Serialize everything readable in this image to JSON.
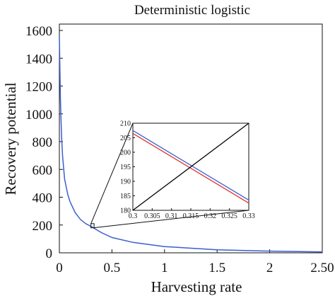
{
  "chart_data": [
    {
      "type": "line",
      "title": "Deterministic logistic",
      "xlabel": "Harvesting rate",
      "ylabel": "Recovery potential",
      "xlim": [
        0,
        2.5
      ],
      "ylim": [
        0,
        1600
      ],
      "xticks": [
        0,
        0.5,
        1,
        1.5,
        2,
        2.5
      ],
      "xtick_labels": [
        "0",
        "0.5",
        "1",
        "1.5",
        "2",
        "2.50"
      ],
      "yticks": [
        0,
        200,
        400,
        600,
        800,
        1000,
        1200,
        1400,
        1600
      ],
      "ytick_labels": [
        "0",
        "200",
        "400",
        "600",
        "800",
        "1000",
        "1200",
        "1400",
        "1600"
      ],
      "grid": false,
      "series": [
        {
          "color": "#3a5fcd",
          "x": [
            0.0,
            0.01,
            0.02,
            0.03,
            0.05,
            0.08,
            0.1,
            0.15,
            0.2,
            0.25,
            0.3,
            0.4,
            0.5,
            0.7,
            1.0,
            1.5,
            2.0,
            2.5
          ],
          "y": [
            1560,
            1100,
            850,
            700,
            530,
            420,
            370,
            290,
            240,
            210,
            190,
            145,
            110,
            75,
            45,
            22,
            12,
            6
          ]
        }
      ],
      "zoom_box": {
        "x": [
          0.3,
          0.33
        ],
        "y": [
          180,
          210
        ]
      }
    },
    {
      "type": "line",
      "title": "",
      "xlim": [
        0.3,
        0.33
      ],
      "ylim": [
        180,
        210
      ],
      "xticks": [
        0.3,
        0.305,
        0.31,
        0.315,
        0.32,
        0.325,
        0.33
      ],
      "xtick_labels": [
        "0.3",
        "0.305",
        "0.31",
        "0.315",
        "0.32",
        "0.325",
        "0.33"
      ],
      "yticks": [
        180,
        185,
        190,
        195,
        200,
        205,
        210
      ],
      "ytick_labels": [
        "180",
        "185",
        "190",
        "195",
        "200",
        "205",
        "210"
      ],
      "grid": false,
      "series": [
        {
          "color": "#3a5fcd",
          "x": [
            0.3,
            0.33
          ],
          "y": [
            207.5,
            183.5
          ]
        },
        {
          "color": "#e03030",
          "x": [
            0.3,
            0.33
          ],
          "y": [
            206.5,
            182.5
          ]
        },
        {
          "color": "#000000",
          "x": [
            0.3,
            0.33
          ],
          "y": [
            180,
            210
          ]
        }
      ]
    }
  ]
}
